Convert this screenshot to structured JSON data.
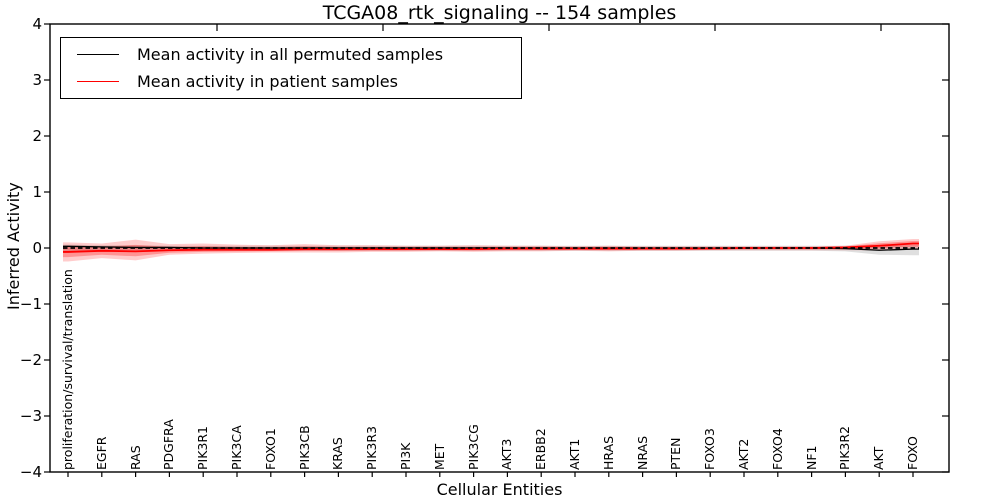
{
  "title": "TCGA08_rtk_signaling -- 154 samples",
  "legend": {
    "items": [
      {
        "label": "Mean activity in all permuted samples",
        "color": "#000000"
      },
      {
        "label": "Mean activity in patient samples",
        "color": "#ff0000"
      }
    ]
  },
  "chart_data": {
    "type": "line",
    "title": "TCGA08_rtk_signaling -- 154 samples",
    "xlabel": "Cellular Entities",
    "ylabel": "Inferred Activity",
    "ylim": [
      -4,
      4
    ],
    "ytick_labels": [
      "4",
      "3",
      "2",
      "1",
      "0",
      "−1",
      "−2",
      "−3",
      "−4"
    ],
    "ytick_values": [
      4,
      3,
      2,
      1,
      0,
      -1,
      -2,
      -3,
      -4
    ],
    "grid": false,
    "legend_position": "upper left",
    "zero_line": {
      "style": "dashed",
      "color": "#000000",
      "y": 0
    },
    "categories": [
      "proliferation/survival/translation",
      "EGFR",
      "RAS",
      "PDGFRA",
      "PIK3R1",
      "PIK3CA",
      "FOXO1",
      "PIK3CB",
      "KRAS",
      "PIK3R3",
      "PI3K",
      "MET",
      "PIK3CG",
      "AKT3",
      "ERBB2",
      "AKT1",
      "HRAS",
      "NRAS",
      "PTEN",
      "FOXO3",
      "AKT2",
      "FOXO4",
      "NF1",
      "PIK3R2",
      "AKT",
      "FOXO"
    ],
    "series": [
      {
        "name": "Mean activity in all permuted samples",
        "color": "#000000",
        "values": [
          0.03,
          0.02,
          0.01,
          0.01,
          0,
          0,
          0,
          0,
          0,
          0,
          0,
          0,
          0,
          0,
          0,
          0,
          0,
          0,
          0,
          0,
          0,
          0,
          0,
          -0.01,
          -0.04,
          -0.02
        ]
      },
      {
        "name": "Mean activity in patient samples",
        "color": "#ff0000",
        "values": [
          -0.07,
          -0.05,
          -0.06,
          -0.04,
          -0.03,
          -0.03,
          -0.03,
          -0.02,
          -0.02,
          -0.02,
          -0.02,
          -0.02,
          -0.02,
          -0.01,
          -0.01,
          -0.01,
          -0.01,
          -0.01,
          -0.01,
          -0.01,
          0,
          0,
          0,
          0.01,
          0.04,
          0.08
        ]
      }
    ],
    "bands": [
      {
        "name": "permuted-samples-std",
        "color": "#808080",
        "opacity": 0.25,
        "upper": [
          0.06,
          0.05,
          0.05,
          0.04,
          0.04,
          0.04,
          0.04,
          0.04,
          0.04,
          0.04,
          0.04,
          0.04,
          0.04,
          0.04,
          0.04,
          0.04,
          0.04,
          0.04,
          0.04,
          0.04,
          0.04,
          0.04,
          0.04,
          0.04,
          0.05,
          0.05
        ],
        "lower": [
          -0.08,
          -0.06,
          -0.06,
          -0.05,
          -0.05,
          -0.05,
          -0.05,
          -0.05,
          -0.05,
          -0.05,
          -0.05,
          -0.05,
          -0.05,
          -0.05,
          -0.05,
          -0.05,
          -0.05,
          -0.05,
          -0.05,
          -0.05,
          -0.05,
          -0.05,
          -0.05,
          -0.06,
          -0.12,
          -0.13
        ]
      },
      {
        "name": "patient-samples-std",
        "color": "#ff0000",
        "opacity": 0.2,
        "upper": [
          0.1,
          0.08,
          0.15,
          0.07,
          0.08,
          0.06,
          0.05,
          0.07,
          0.05,
          0.05,
          0.04,
          0.04,
          0.05,
          0.04,
          0.04,
          0.03,
          0.04,
          0.03,
          0.03,
          0.03,
          0.03,
          0.03,
          0.03,
          0.04,
          0.12,
          0.16
        ],
        "lower": [
          -0.24,
          -0.18,
          -0.22,
          -0.12,
          -0.1,
          -0.09,
          -0.08,
          -0.08,
          -0.08,
          -0.07,
          -0.07,
          -0.06,
          -0.07,
          -0.06,
          -0.06,
          -0.05,
          -0.06,
          -0.05,
          -0.05,
          -0.04,
          -0.04,
          -0.04,
          -0.04,
          -0.04,
          -0.04,
          -0.02
        ]
      }
    ]
  }
}
